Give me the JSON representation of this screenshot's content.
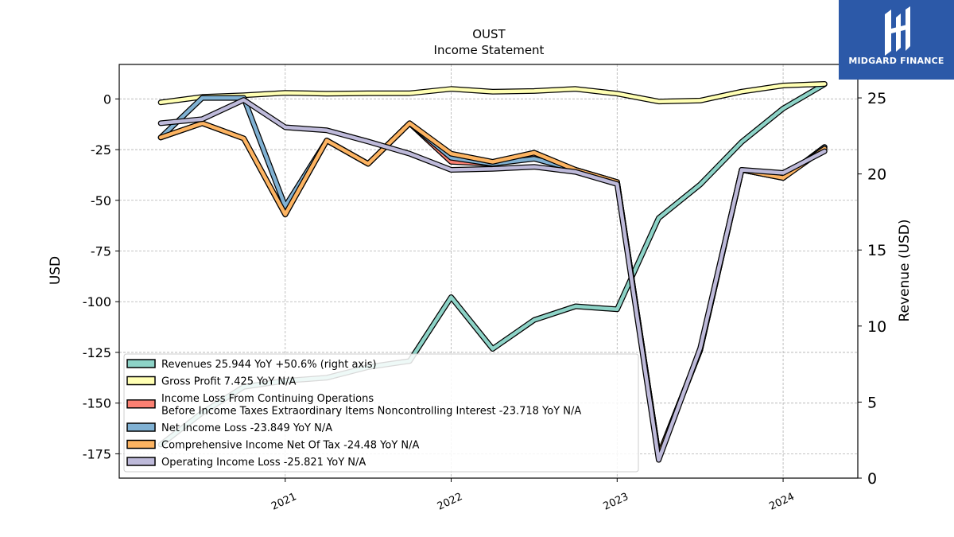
{
  "brand": {
    "name": "MIDGARD FINANCE",
    "color": "#2c59a8"
  },
  "chart_data": {
    "type": "line",
    "title": "OUST",
    "subtitle": "Income Statement",
    "ylabel": "USD",
    "y2label": "Revenue (USD)",
    "ylim": [
      -187,
      17
    ],
    "y2lim": [
      0,
      27.2
    ],
    "xlim": [
      2020.0,
      2024.45
    ],
    "yticks": [
      0,
      -25,
      -50,
      -75,
      -100,
      -125,
      -150,
      -175
    ],
    "y2ticks": [
      0,
      5,
      10,
      15,
      20,
      25
    ],
    "xticks": [
      {
        "v": 2021.0,
        "label": "2021"
      },
      {
        "v": 2022.0,
        "label": "2022"
      },
      {
        "v": 2023.0,
        "label": "2023"
      },
      {
        "v": 2024.0,
        "label": "2024"
      }
    ],
    "grid": true,
    "legend_position": "lower-left",
    "x": [
      2020.25,
      2020.5,
      2020.75,
      2021.0,
      2021.25,
      2021.5,
      2021.75,
      2022.0,
      2022.25,
      2022.5,
      2022.75,
      2023.0,
      2023.25,
      2023.5,
      2023.75,
      2024.0,
      2024.25
    ],
    "series": [
      {
        "name": "Revenues",
        "legend": "Revenues  25.944 YoY +50.6% (right axis)",
        "color": "#8dd3c7",
        "axis": "right",
        "values": [
          2.2,
          4.3,
          6.0,
          6.4,
          6.6,
          7.3,
          7.7,
          11.9,
          8.5,
          10.4,
          11.3,
          11.1,
          17.1,
          19.3,
          22.1,
          24.3,
          25.9
        ]
      },
      {
        "name": "Gross Profit",
        "legend": "Gross Profit  7.425 YoY N/A",
        "color": "#ffffb3",
        "axis": "left",
        "values": [
          -1.7,
          1.0,
          1.8,
          3.0,
          2.6,
          2.8,
          2.8,
          4.9,
          3.6,
          3.9,
          4.9,
          2.6,
          -1.3,
          -0.8,
          3.6,
          6.6,
          7.4
        ]
      },
      {
        "name": "Income Loss From Continuing Operations Before Income Taxes Extraordinary Items Noncontrolling Interest",
        "legend": "Income Loss From Continuing Operations\nBefore Income Taxes Extraordinary Items Noncontrolling Interest  -23.718 YoY N/A",
        "color": "#fb8072",
        "axis": "left",
        "values": [
          -19.0,
          -12.0,
          -19.5,
          -57.0,
          -20.5,
          -32.0,
          -12.0,
          -31.0,
          -32.0,
          -28.0,
          -35.0,
          -41.0,
          -176.0,
          -124.0,
          -35.0,
          -39.0,
          -23.7
        ]
      },
      {
        "name": "Net Income Loss",
        "legend": "Net Income Loss  -23.849 YoY N/A",
        "color": "#80b1d3",
        "axis": "left",
        "values": [
          -19.0,
          0.5,
          0.5,
          -53.0,
          -20.5,
          -32.0,
          -12.0,
          -29.0,
          -32.0,
          -29.5,
          -35.0,
          -41.0,
          -176.0,
          -124.0,
          -35.0,
          -39.0,
          -23.8
        ]
      },
      {
        "name": "Comprehensive Income Net Of Tax",
        "legend": "Comprehensive Income Net Of Tax  -24.48 YoY N/A",
        "color": "#fdb462",
        "axis": "left",
        "values": [
          -19.0,
          -12.0,
          -19.5,
          -57.0,
          -20.5,
          -32.0,
          -12.0,
          -27.0,
          -31.0,
          -26.5,
          -35.0,
          -41.0,
          -176.0,
          -124.0,
          -35.0,
          -39.0,
          -24.5
        ]
      },
      {
        "name": "Operating Income Loss",
        "legend": "Operating Income Loss  -25.821 YoY N/A",
        "color": "#bebada",
        "axis": "left",
        "values": [
          -12.0,
          -10.0,
          -0.5,
          -14.0,
          -15.5,
          -21.0,
          -27.0,
          -35.0,
          -34.5,
          -33.5,
          -36.0,
          -42.0,
          -178.0,
          -123.0,
          -35.0,
          -36.5,
          -25.8
        ]
      }
    ]
  }
}
